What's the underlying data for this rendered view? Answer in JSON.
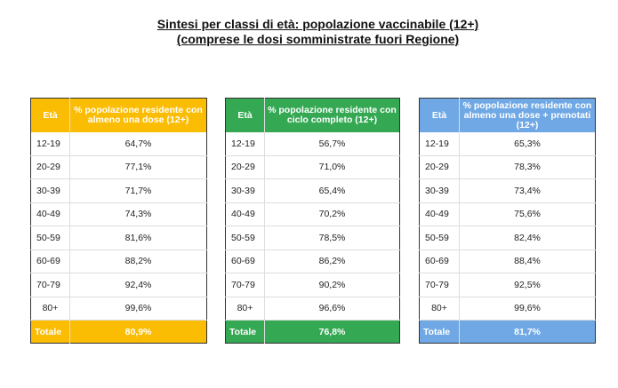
{
  "title": {
    "line1": "Sintesi per classi di età: popolazione vaccinabile (12+)",
    "line2": "(comprese le dosi somministrate fuori Regione)"
  },
  "age_groups": [
    "12-19",
    "20-29",
    "30-39",
    "40-49",
    "50-59",
    "60-69",
    "70-79",
    "80+"
  ],
  "tables": [
    {
      "color": "#FBBC04",
      "col1_header": "Età",
      "col2_header": "% popolazione residente con almeno una dose (12+)",
      "values": [
        "64,7%",
        "77,1%",
        "71,7%",
        "74,3%",
        "81,6%",
        "88,2%",
        "92,4%",
        "99,6%"
      ],
      "total_label": "Totale",
      "total_value": "80,9%"
    },
    {
      "color": "#34A853",
      "col1_header": "Età",
      "col2_header": "% popolazione residente con ciclo completo (12+)",
      "values": [
        "56,7%",
        "71,0%",
        "65,4%",
        "70,2%",
        "78,5%",
        "86,2%",
        "90,2%",
        "96,6%"
      ],
      "total_label": "Totale",
      "total_value": "76,8%"
    },
    {
      "color": "#6FA8E4",
      "col1_header": "Età",
      "col2_header": "% popolazione residente con almeno una dose + prenotati (12+)",
      "values": [
        "65,3%",
        "78,3%",
        "73,4%",
        "75,6%",
        "82,4%",
        "88,4%",
        "92,5%",
        "99,6%"
      ],
      "total_label": "Totale",
      "total_value": "81,7%"
    }
  ]
}
